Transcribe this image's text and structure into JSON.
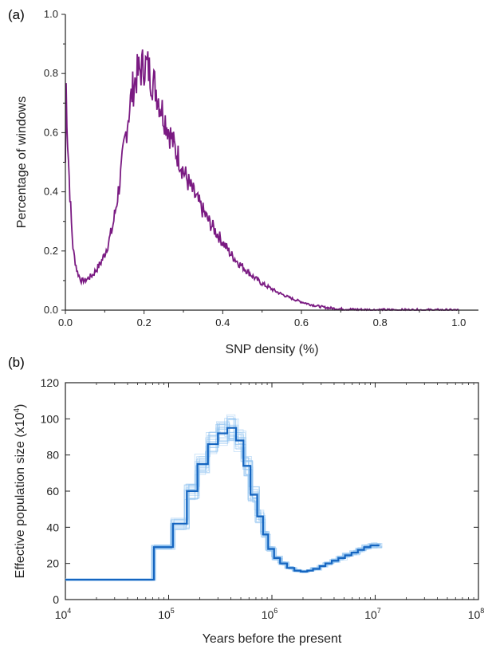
{
  "chart_data": [
    {
      "panel": "(a)",
      "type": "line",
      "xlabel": "SNP density (%)",
      "ylabel": "Percentage of windows",
      "xlim": [
        0,
        1.05
      ],
      "ylim": [
        0,
        1.0
      ],
      "x_ticks": [
        0.0,
        0.2,
        0.4,
        0.6,
        0.8,
        1.0
      ],
      "x_tick_labels": [
        "0.0",
        "0.2",
        "0.4",
        "0.6",
        "0.8",
        "1.0"
      ],
      "y_ticks": [
        0.0,
        0.2,
        0.4,
        0.6,
        0.8,
        1.0
      ],
      "y_tick_labels": [
        "0.0",
        "0.2",
        "0.4",
        "0.6",
        "0.8",
        "1.0"
      ],
      "color": "#7a1a82",
      "series": [
        {
          "x": [
            0.0,
            0.002,
            0.005,
            0.01,
            0.015,
            0.02,
            0.03,
            0.04,
            0.05,
            0.06,
            0.07,
            0.08,
            0.09,
            0.1,
            0.11,
            0.12,
            0.13,
            0.14,
            0.15,
            0.16,
            0.17,
            0.18,
            0.19,
            0.2,
            0.21,
            0.22,
            0.23,
            0.24,
            0.25,
            0.26,
            0.27,
            0.28,
            0.29,
            0.3,
            0.32,
            0.34,
            0.36,
            0.38,
            0.4,
            0.42,
            0.44,
            0.46,
            0.48,
            0.5,
            0.52,
            0.54,
            0.56,
            0.58,
            0.6,
            0.62,
            0.64,
            0.66,
            0.68,
            0.7,
            0.72,
            0.74,
            0.76,
            0.78,
            0.8,
            0.85,
            0.9,
            0.95,
            1.0
          ],
          "y": [
            0.5,
            0.77,
            0.6,
            0.44,
            0.3,
            0.2,
            0.13,
            0.1,
            0.1,
            0.11,
            0.12,
            0.14,
            0.16,
            0.19,
            0.23,
            0.28,
            0.36,
            0.45,
            0.56,
            0.66,
            0.74,
            0.79,
            0.81,
            0.83,
            0.82,
            0.78,
            0.75,
            0.7,
            0.66,
            0.62,
            0.58,
            0.54,
            0.51,
            0.47,
            0.41,
            0.36,
            0.31,
            0.27,
            0.23,
            0.19,
            0.16,
            0.135,
            0.11,
            0.09,
            0.075,
            0.06,
            0.048,
            0.037,
            0.028,
            0.02,
            0.014,
            0.009,
            0.006,
            0.004,
            0.003,
            0.002,
            0.0015,
            0.001,
            0.001,
            0.0005,
            0.0005,
            0.0003,
            0.0
          ]
        }
      ]
    },
    {
      "panel": "(b)",
      "type": "line",
      "xlabel": "Years before the present",
      "ylabel_base": "Effective population size (x10",
      "ylabel_exp": "4",
      "ylabel_end": ")",
      "xscale": "log",
      "xlim": [
        10000,
        100000000
      ],
      "ylim": [
        0,
        120
      ],
      "x_tick_values": [
        10000,
        100000,
        1000000,
        10000000,
        100000000
      ],
      "x_tick_base": "10",
      "x_tick_exponents": [
        "4",
        "5",
        "6",
        "7",
        "8"
      ],
      "y_ticks": [
        0,
        20,
        40,
        60,
        80,
        100,
        120
      ],
      "y_tick_labels": [
        "0",
        "20",
        "40",
        "60",
        "80",
        "100",
        "120"
      ],
      "main_color": "#1565c0",
      "bootstrap_color": "#90c2f0",
      "series": [
        {
          "type": "step",
          "x": [
            10000,
            72000,
            110000,
            150000,
            190000,
            240000,
            300000,
            370000,
            450000,
            530000,
            620000,
            720000,
            820000,
            920000,
            1050000,
            1200000,
            1400000,
            1650000,
            1900000,
            2200000,
            2500000,
            2900000,
            3300000,
            3800000,
            4400000,
            5100000,
            5900000,
            6800000,
            7800000,
            9000000,
            11000000
          ],
          "y": [
            11,
            29,
            42,
            60,
            75,
            86,
            92,
            95,
            88,
            74,
            58,
            46,
            36,
            28,
            23,
            20,
            17.5,
            16,
            15.5,
            16,
            17,
            18.5,
            20,
            21.5,
            23,
            24.5,
            26,
            27.5,
            29,
            30,
            30
          ]
        }
      ]
    }
  ]
}
